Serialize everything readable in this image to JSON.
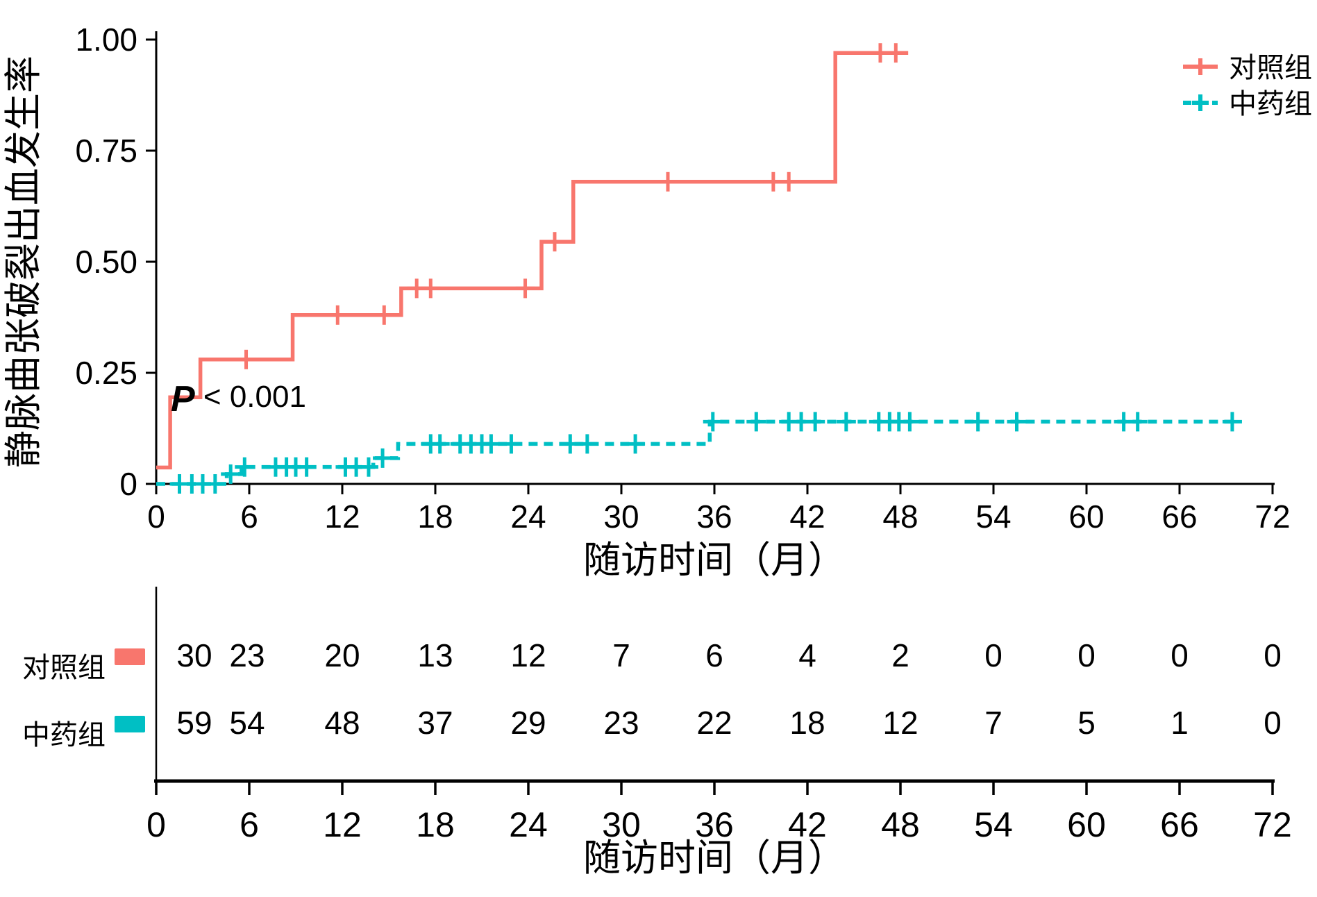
{
  "figure": {
    "background": "#ffffff",
    "text_color": "#000000",
    "axis_color": "#000000"
  },
  "chart_data": {
    "type": "line",
    "subtype": "kaplan-meier-cumulative-incidence-step",
    "title": "",
    "ylabel": "静脉曲张破裂出血发生率",
    "xlabel": "随访时间（月）",
    "annotation": "P < 0.001",
    "annotation_parts": {
      "p": "P",
      "rest": " < 0.001"
    },
    "xlim": [
      0,
      72
    ],
    "ylim": [
      0,
      1.0
    ],
    "xticks": [
      0,
      6,
      12,
      18,
      24,
      30,
      36,
      42,
      48,
      54,
      60,
      66,
      72
    ],
    "yticks": [
      {
        "value": 0,
        "label": "0"
      },
      {
        "value": 0.25,
        "label": "0.25"
      },
      {
        "value": 0.5,
        "label": "0.50"
      },
      {
        "value": 0.75,
        "label": "0.75"
      },
      {
        "value": 1.0,
        "label": "1.00"
      }
    ],
    "grid": false,
    "legend_position": "top-right",
    "series": [
      {
        "name": "对照组",
        "color": "#F8766D",
        "line_style": "solid",
        "start": [
          0,
          0.037
        ],
        "steps": [
          [
            0.9,
            0.195
          ],
          [
            2.85,
            0.28
          ],
          [
            8.8,
            0.38
          ],
          [
            15.8,
            0.44
          ],
          [
            24.85,
            0.545
          ],
          [
            26.9,
            0.68
          ],
          [
            43.8,
            0.97
          ]
        ],
        "end_month": 48.5,
        "censor_months": [
          5.8,
          11.7,
          14.7,
          16.8,
          17.7,
          23.8,
          25.7,
          33.0,
          39.8,
          40.8,
          46.7,
          47.7
        ]
      },
      {
        "name": "中药组",
        "color": "#00BFC4",
        "line_style": "dashed",
        "start": [
          0,
          0
        ],
        "steps": [
          [
            4.55,
            0.022
          ],
          [
            5.5,
            0.038
          ],
          [
            14.0,
            0.058
          ],
          [
            15.6,
            0.09
          ],
          [
            35.7,
            0.14
          ]
        ],
        "end_month": 69.6,
        "censor_months": [
          1.5,
          2.3,
          3.0,
          3.8,
          4.8,
          5.7,
          7.7,
          8.4,
          9.0,
          9.7,
          12.2,
          12.9,
          13.7,
          14.6,
          17.7,
          18.3,
          19.6,
          20.3,
          21.0,
          21.6,
          22.9,
          26.7,
          27.8,
          30.9,
          35.9,
          38.7,
          40.8,
          41.6,
          42.5,
          44.5,
          46.6,
          47.3,
          47.9,
          48.6,
          53.0,
          55.5,
          62.4,
          63.3,
          69.4
        ]
      }
    ],
    "risk_table": {
      "xlabel": "随访时间（月）",
      "xticks": [
        0,
        6,
        12,
        18,
        24,
        30,
        36,
        42,
        48,
        54,
        60,
        66,
        72
      ],
      "rows": [
        {
          "label": "对照组",
          "color": "#F8766D",
          "counts": [
            30,
            23,
            20,
            13,
            12,
            7,
            6,
            4,
            2,
            0,
            0,
            0,
            0
          ]
        },
        {
          "label": "中药组",
          "color": "#00BFC4",
          "counts": [
            59,
            54,
            48,
            37,
            29,
            23,
            22,
            18,
            12,
            7,
            5,
            1,
            0
          ]
        }
      ]
    }
  }
}
